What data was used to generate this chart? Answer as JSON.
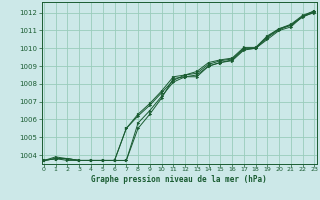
{
  "title": "Graphe pression niveau de la mer (hPa)",
  "bg_color": "#cce8e8",
  "grid_color": "#99ccbb",
  "line_color": "#1a5c32",
  "x_ticks": [
    0,
    1,
    2,
    3,
    4,
    5,
    6,
    7,
    8,
    9,
    10,
    11,
    12,
    13,
    14,
    15,
    16,
    17,
    18,
    19,
    20,
    21,
    22,
    23
  ],
  "y_ticks": [
    1004,
    1005,
    1006,
    1007,
    1008,
    1009,
    1010,
    1011,
    1012
  ],
  "x_min": -0.2,
  "x_max": 23.2,
  "y_min": 1003.5,
  "y_max": 1012.6,
  "series": [
    [
      1003.7,
      1003.8,
      1003.8,
      1003.7,
      1003.7,
      1003.7,
      1003.7,
      1003.7,
      1005.5,
      1006.3,
      1007.2,
      1008.3,
      1008.4,
      1008.4,
      1009.0,
      1009.2,
      1009.3,
      1009.9,
      1010.0,
      1010.5,
      1011.0,
      1011.2,
      1011.8,
      1012.0
    ],
    [
      1003.7,
      1003.8,
      1003.8,
      1003.7,
      1003.7,
      1003.7,
      1003.7,
      1003.7,
      1005.8,
      1006.5,
      1007.3,
      1008.1,
      1008.4,
      1008.5,
      1009.0,
      1009.2,
      1009.35,
      1009.95,
      1010.0,
      1010.6,
      1011.05,
      1011.3,
      1011.75,
      1012.05
    ],
    [
      1003.7,
      1003.8,
      1003.7,
      1003.7,
      1003.7,
      1003.7,
      1003.7,
      1005.5,
      1006.2,
      1006.8,
      1007.5,
      1008.2,
      1008.5,
      1008.6,
      1009.1,
      1009.3,
      1009.4,
      1010.0,
      1010.0,
      1010.65,
      1011.1,
      1011.3,
      1011.8,
      1012.1
    ],
    [
      1003.7,
      1003.9,
      1003.8,
      1003.7,
      1003.7,
      1003.7,
      1003.7,
      1005.5,
      1006.3,
      1006.9,
      1007.6,
      1008.4,
      1008.5,
      1008.7,
      1009.2,
      1009.35,
      1009.45,
      1010.05,
      1010.05,
      1010.7,
      1011.1,
      1011.35,
      1011.85,
      1012.1
    ]
  ]
}
